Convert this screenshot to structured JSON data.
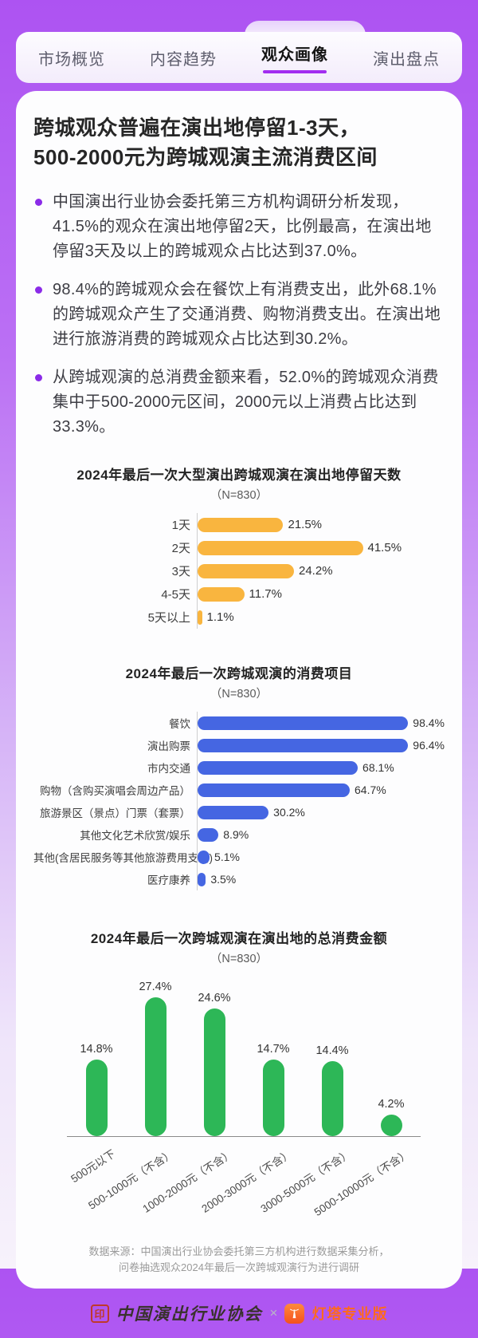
{
  "colors": {
    "bg_top": "#AD53F2",
    "bg_bottom": "#F7F2FB",
    "card": "#FDFDFE",
    "accent_purple": "#A22DF0",
    "bullet_dot": "#8B2BE8",
    "bar_yellow": "#F9B53F",
    "bar_blue": "#4566E2",
    "bar_green": "#2DB757",
    "brand_orange": "#FF6A1C",
    "seal_red": "#C0392B"
  },
  "tabs": {
    "items": [
      {
        "label": "市场概览",
        "active": false
      },
      {
        "label": "内容趋势",
        "active": false
      },
      {
        "label": "观众画像",
        "active": true
      },
      {
        "label": "演出盘点",
        "active": false
      }
    ]
  },
  "card": {
    "title_line1": "跨城观众普遍在演出地停留1-3天，",
    "title_line2": "500-2000元为跨城观演主流消费区间",
    "bullets": [
      "中国演出行业协会委托第三方机构调研分析发现，41.5%的观众在演出地停留2天，比例最高，在演出地停留3天及以上的跨城观众占比达到37.0%。",
      "98.4%的跨城观众会在餐饮上有消费支出，此外68.1%的跨城观众产生了交通消费、购物消费支出。在演出地进行旅游消费的跨城观众占比达到30.2%。",
      "从跨城观演的总消费金额来看，52.0%的跨城观众消费集中于500-2000元区间，2000元以上消费占比达到33.3%。"
    ]
  },
  "chart_data": [
    {
      "type": "bar",
      "orientation": "horizontal",
      "title": "2024年最后一次大型演出跨城观演在演出地停留天数",
      "subtitle": "（N=830）",
      "categories": [
        "1天",
        "2天",
        "3天",
        "4-5天",
        "5天以上"
      ],
      "values": [
        21.5,
        41.5,
        24.2,
        11.7,
        1.1
      ],
      "unit": "%",
      "bar_color": "#F9B53F",
      "xlim": [
        0,
        45
      ],
      "grid": false,
      "legend": "none"
    },
    {
      "type": "bar",
      "orientation": "horizontal",
      "title": "2024年最后一次跨城观演的消费项目",
      "subtitle": "（N=830）",
      "categories": [
        "餐饮",
        "演出购票",
        "市内交通",
        "购物（含购买演唱会周边产品）",
        "旅游景区（景点）门票（套票）",
        "其他文化艺术欣赏/娱乐",
        "其他(含居民服务等其他旅游费用支出)",
        "医疗康养"
      ],
      "values": [
        98.4,
        96.4,
        68.1,
        64.7,
        30.2,
        8.9,
        5.1,
        3.5
      ],
      "unit": "%",
      "bar_color": "#4566E2",
      "xlim": [
        0,
        100
      ],
      "grid": false,
      "legend": "none"
    },
    {
      "type": "bar",
      "orientation": "vertical",
      "title": "2024年最后一次跨城观演在演出地的总消费金额",
      "subtitle": "（N=830）",
      "categories": [
        "500元以下",
        "500-1000元（不含）",
        "1000-2000元（不含）",
        "2000-3000元（不含）",
        "3000-5000元（不含）",
        "5000-10000元（不含）"
      ],
      "values": [
        14.8,
        27.4,
        24.6,
        14.7,
        14.4,
        4.2
      ],
      "unit": "%",
      "bar_color": "#2DB757",
      "ylim": [
        0,
        30
      ],
      "grid": false,
      "legend": "none"
    }
  ],
  "footer": {
    "source_line1": "数据来源：中国演出行业协会委托第三方机构进行数据采集分析，",
    "source_line2": "问卷抽选观众2024年最后一次跨城观演行为进行调研"
  },
  "brandbar": {
    "left_name": "中国演出行业协会",
    "separator": "×",
    "right_name": "灯塔专业版"
  }
}
